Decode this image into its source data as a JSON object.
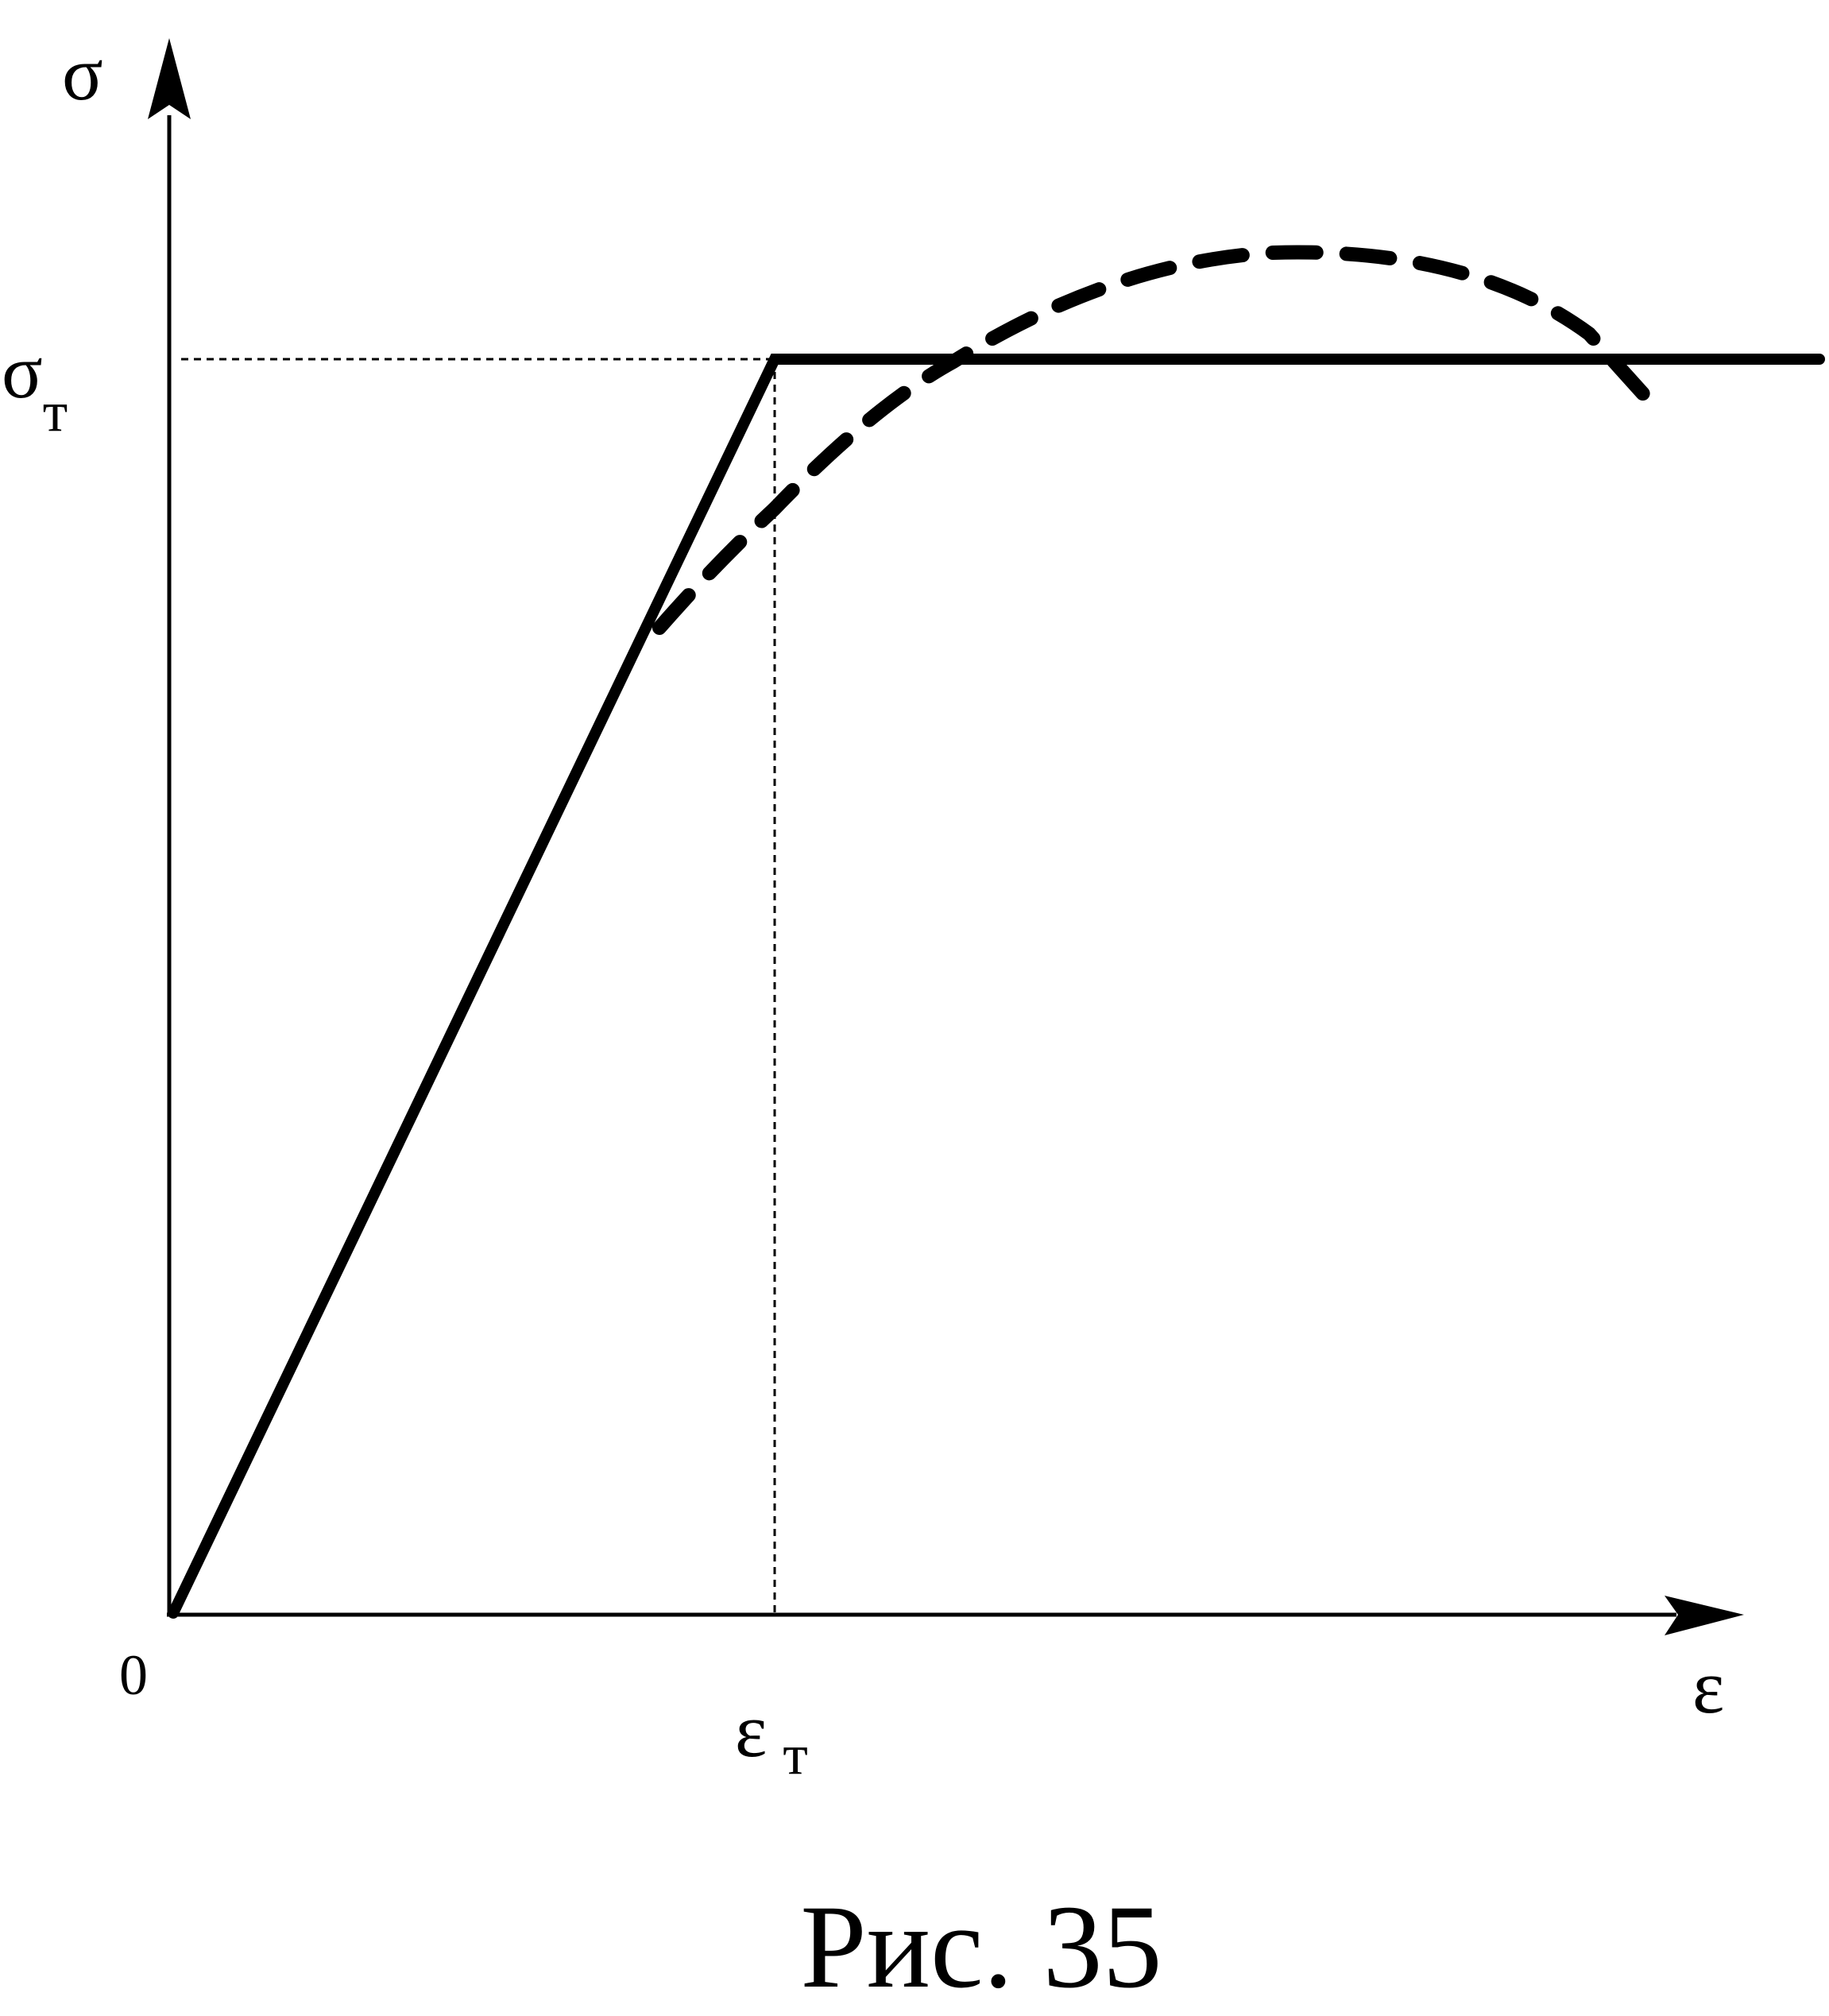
{
  "figure": {
    "y_axis_label": "σ",
    "x_axis_label": "ε",
    "origin_label": "0",
    "yield_stress_symbol": "σ",
    "yield_stress_subscript": "т",
    "yield_strain_symbol": "ε",
    "yield_strain_subscript": "т",
    "caption": "Рис. 35"
  },
  "colors": {
    "ink": "#000000",
    "background": "#ffffff"
  }
}
